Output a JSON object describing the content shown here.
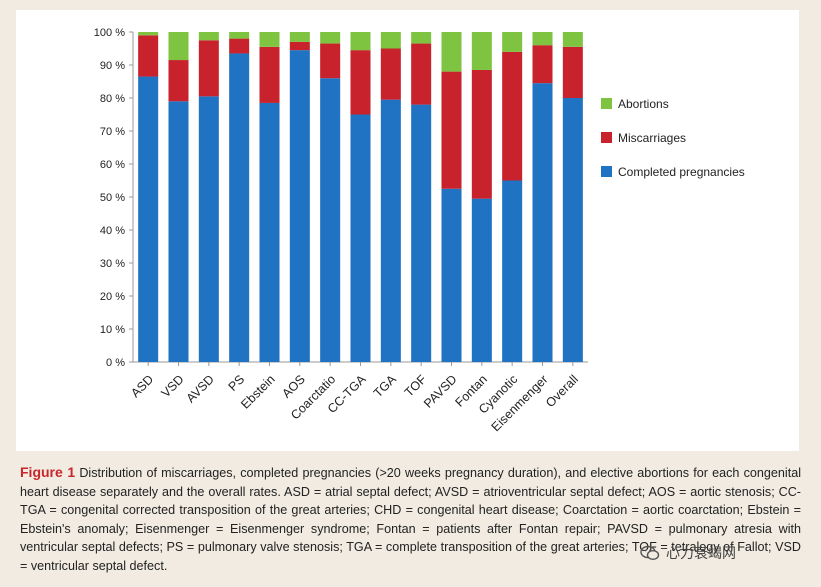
{
  "chart_data": {
    "type": "bar",
    "stacked": true,
    "title": "",
    "xlabel": "",
    "ylabel": "",
    "ylim": [
      0,
      100
    ],
    "yticks": [
      "0 %",
      "10 %",
      "20 %",
      "30 %",
      "40 %",
      "50 %",
      "60 %",
      "70 %",
      "80 %",
      "90 %",
      "100 %"
    ],
    "categories": [
      "ASD",
      "VSD",
      "AVSD",
      "PS",
      "Ebstein",
      "AOS",
      "Coarctatio",
      "CC-TGA",
      "TGA",
      "TOF",
      "PAVSD",
      "Fontan",
      "Cyanotic",
      "Eisenmenger",
      "Overall"
    ],
    "series": [
      {
        "name": "Completed pregnancies",
        "color": "#1f73c2",
        "values": [
          86.5,
          79,
          80.5,
          93.5,
          78.5,
          94.5,
          86,
          75,
          79.5,
          78,
          52.5,
          49.5,
          55,
          84.5,
          80
        ]
      },
      {
        "name": "Miscarriages",
        "color": "#c8232c",
        "values": [
          12.5,
          12.5,
          17,
          4.5,
          17,
          2.5,
          10.5,
          19.5,
          15.5,
          18.5,
          35.5,
          39,
          39,
          11.5,
          15.5
        ]
      },
      {
        "name": "Abortions",
        "color": "#7ec440",
        "values": [
          1,
          8.5,
          2.5,
          2,
          4.5,
          3,
          3.5,
          5.5,
          5,
          3.5,
          12,
          11.5,
          6,
          4,
          4.5
        ]
      }
    ],
    "legend": {
      "placement": "right",
      "entries": [
        "Abortions",
        "Miscarriages",
        "Completed pregnancies"
      ]
    },
    "grid": false
  },
  "caption": {
    "label": "Figure 1",
    "text": "Distribution of miscarriages, completed pregnancies (>20 weeks pregnancy duration), and elective abortions for each congenital heart disease separately and the overall rates. ASD = atrial septal defect; AVSD = atrioventricular septal defect; AOS = aortic stenosis; CC-TGA = congenital corrected transposition of the great arteries; CHD = congenital heart disease; Coarctation = aortic coarctation; Ebstein = Ebstein's anomaly; Eisenmenger = Eisenmenger syndrome; Fontan = patients after Fontan repair; PAVSD = pulmonary atresia with ventricular septal defects; PS = pulmonary valve stenosis; TGA = complete transposition of the great arteries; TOF = tetralogy of Fallot; VSD = ventricular septal defect."
  },
  "watermark": {
    "icon": "wechat-icon",
    "text": "心力衰竭网"
  }
}
